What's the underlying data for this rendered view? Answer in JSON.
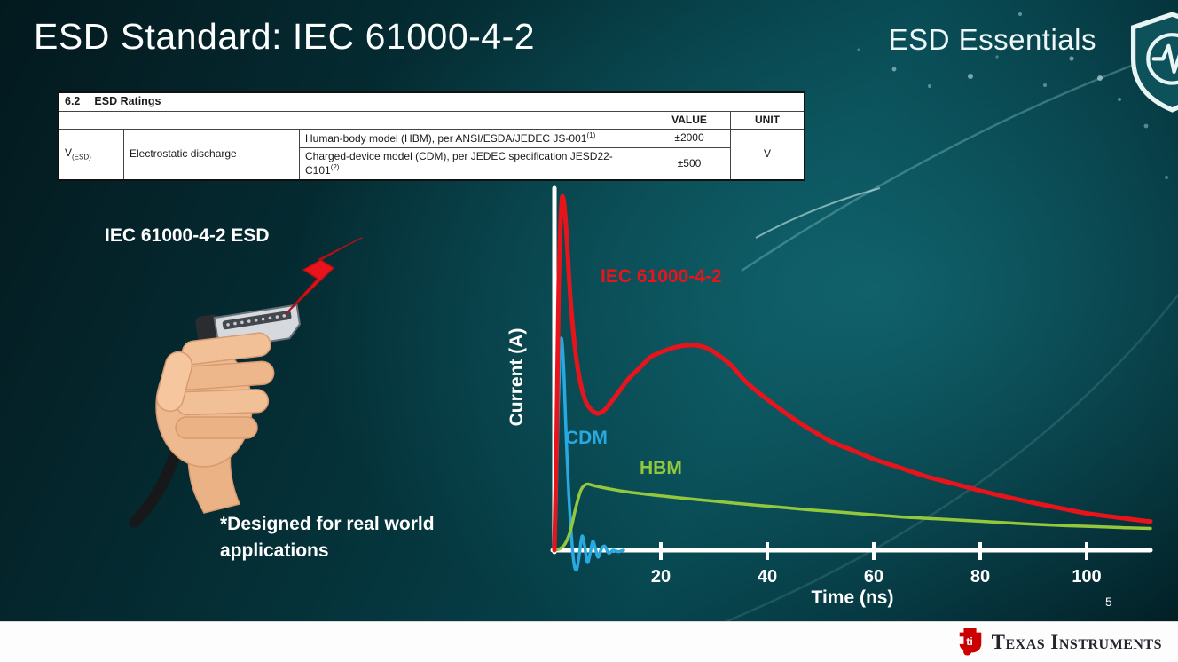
{
  "slide": {
    "title": "ESD Standard: IEC 61000-4-2",
    "brand": "ESD Essentials",
    "page_number": "5"
  },
  "datasheet_table": {
    "section_number": "6.2",
    "section_title": "ESD Ratings",
    "value_header": "VALUE",
    "unit_header": "UNIT",
    "symbol_base": "V",
    "symbol_sub": "(ESD)",
    "parameter": "Electrostatic discharge",
    "rows": [
      {
        "model": "Human-body model (HBM), per ANSI/ESDA/JEDEC JS-001",
        "sup": "(1)",
        "value": "±2000"
      },
      {
        "model": "Charged-device model (CDM), per JEDEC specification JESD22-C101",
        "sup": "(2)",
        "value": "±500"
      }
    ],
    "unit": "V"
  },
  "illustration": {
    "caption": "IEC 61000-4-2 ESD",
    "note_line1": "*Designed for real world",
    "note_line2": "applications",
    "icons": [
      "hand-holding-hdmi-connector",
      "red-lightning-bolt-icon"
    ]
  },
  "chart_data": {
    "type": "line",
    "title": "",
    "xlabel": "Time (ns)",
    "ylabel": "Current (A)",
    "xlim": [
      0,
      112
    ],
    "ylim": [
      -0.08,
      1.05
    ],
    "x_ticks": [
      20,
      40,
      60,
      80,
      100
    ],
    "grid": false,
    "legend": "inline labels near curves",
    "y_units": "relative peak current (axis unlabeled numerically)",
    "series": [
      {
        "name": "IEC 61000-4-2",
        "color": "#e8141c",
        "points": [
          [
            0,
            0
          ],
          [
            0.4,
            0.3
          ],
          [
            0.8,
            0.75
          ],
          [
            1.3,
            0.98
          ],
          [
            1.7,
            1.0
          ],
          [
            2.2,
            0.92
          ],
          [
            3,
            0.72
          ],
          [
            4,
            0.56
          ],
          [
            5,
            0.47
          ],
          [
            6,
            0.42
          ],
          [
            7,
            0.4
          ],
          [
            8,
            0.39
          ],
          [
            9,
            0.395
          ],
          [
            10,
            0.41
          ],
          [
            12,
            0.45
          ],
          [
            14,
            0.49
          ],
          [
            16,
            0.52
          ],
          [
            18,
            0.55
          ],
          [
            20,
            0.565
          ],
          [
            23,
            0.58
          ],
          [
            26,
            0.585
          ],
          [
            28,
            0.58
          ],
          [
            30,
            0.565
          ],
          [
            33,
            0.53
          ],
          [
            36,
            0.48
          ],
          [
            40,
            0.43
          ],
          [
            44,
            0.385
          ],
          [
            48,
            0.345
          ],
          [
            52,
            0.31
          ],
          [
            56,
            0.285
          ],
          [
            60,
            0.26
          ],
          [
            65,
            0.235
          ],
          [
            70,
            0.21
          ],
          [
            75,
            0.19
          ],
          [
            80,
            0.17
          ],
          [
            85,
            0.152
          ],
          [
            90,
            0.135
          ],
          [
            95,
            0.12
          ],
          [
            100,
            0.105
          ],
          [
            105,
            0.095
          ],
          [
            110,
            0.085
          ],
          [
            112,
            0.082
          ]
        ]
      },
      {
        "name": "CDM",
        "color": "#2aa9e0",
        "points": [
          [
            0,
            0
          ],
          [
            0.3,
            0.12
          ],
          [
            0.7,
            0.4
          ],
          [
            1.1,
            0.57
          ],
          [
            1.4,
            0.6
          ],
          [
            1.8,
            0.5
          ],
          [
            2.2,
            0.33
          ],
          [
            2.7,
            0.16
          ],
          [
            3.2,
            0.04
          ],
          [
            3.7,
            -0.04
          ],
          [
            4.2,
            -0.055
          ],
          [
            4.7,
            -0.01
          ],
          [
            5.2,
            0.04
          ],
          [
            5.7,
            0.01
          ],
          [
            6.2,
            -0.035
          ],
          [
            6.7,
            -0.01
          ],
          [
            7.2,
            0.025
          ],
          [
            7.7,
            0.005
          ],
          [
            8.2,
            -0.02
          ],
          [
            8.7,
            0
          ],
          [
            9.4,
            0.012
          ],
          [
            10.2,
            -0.008
          ],
          [
            11,
            0
          ],
          [
            12,
            -0.004
          ],
          [
            13,
            0
          ]
        ]
      },
      {
        "name": "HBM",
        "color": "#93c83d",
        "points": [
          [
            0,
            0
          ],
          [
            1,
            0.004
          ],
          [
            2,
            0.018
          ],
          [
            3,
            0.055
          ],
          [
            4,
            0.12
          ],
          [
            5,
            0.172
          ],
          [
            6,
            0.188
          ],
          [
            7,
            0.186
          ],
          [
            8,
            0.182
          ],
          [
            10,
            0.176
          ],
          [
            13,
            0.168
          ],
          [
            16,
            0.162
          ],
          [
            20,
            0.155
          ],
          [
            25,
            0.147
          ],
          [
            30,
            0.14
          ],
          [
            36,
            0.131
          ],
          [
            42,
            0.123
          ],
          [
            48,
            0.115
          ],
          [
            54,
            0.108
          ],
          [
            60,
            0.101
          ],
          [
            66,
            0.094
          ],
          [
            72,
            0.089
          ],
          [
            78,
            0.084
          ],
          [
            84,
            0.079
          ],
          [
            90,
            0.074
          ],
          [
            96,
            0.07
          ],
          [
            102,
            0.067
          ],
          [
            107,
            0.064
          ],
          [
            112,
            0.062
          ]
        ]
      }
    ]
  },
  "footer": {
    "company": "Texas Instruments",
    "logo_icon": "ti-bug-icon"
  },
  "header_icons": {
    "shield": "shield-pulse-icon"
  }
}
